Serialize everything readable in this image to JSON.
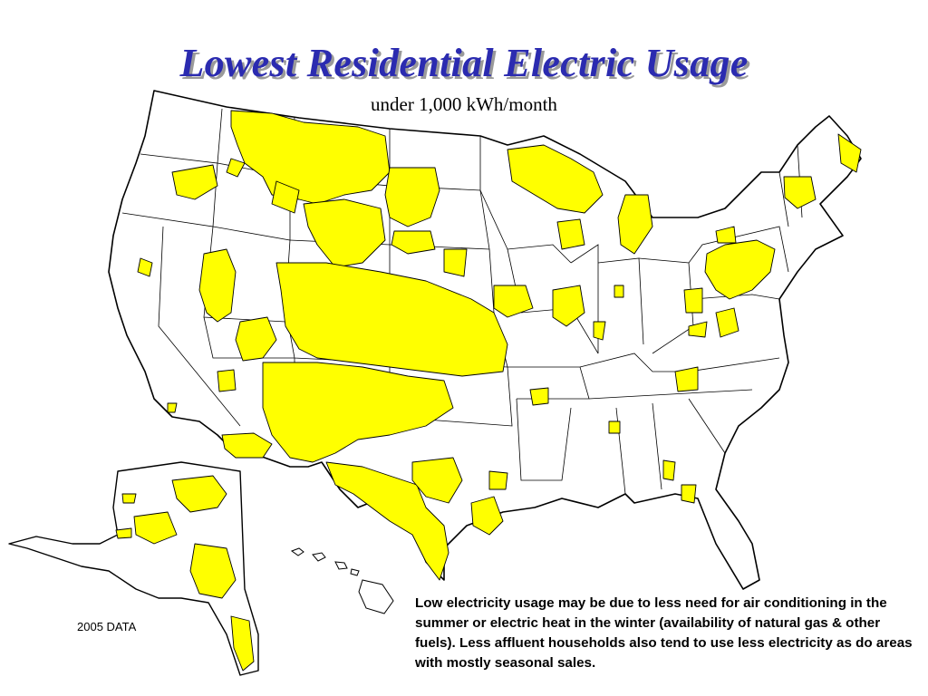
{
  "title": "Lowest Residential Electric Usage",
  "subtitle": "under 1,000 kWh/month",
  "note": "Low electricity usage may be due to less need for air conditioning in the summer or electric heat in the winter (availability of natural gas & other fuels). Less affluent households also tend to use less electricity as do areas with mostly seasonal sales.",
  "data_year_label": "2005 DATA",
  "colors": {
    "highlight": "#ffff00",
    "title": "#2b2bb0",
    "outline": "#000000"
  }
}
